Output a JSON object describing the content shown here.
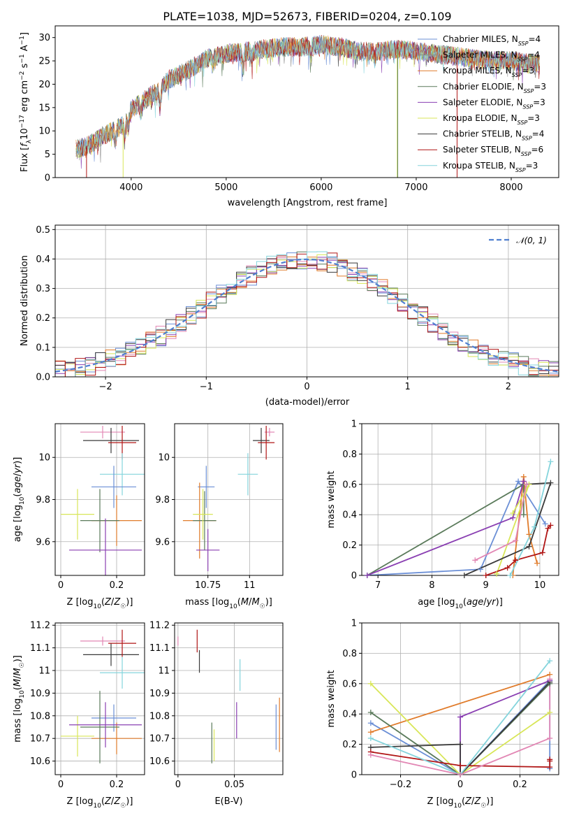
{
  "figure": {
    "colors": [
      "#6b8fd6",
      "#888888",
      "#e07b2a",
      "#5a7a5a",
      "#8a3fb2",
      "#d8e658",
      "#3a3a3a",
      "#b01515",
      "#84d4dc",
      "#e287b4"
    ]
  },
  "chart_data": [
    {
      "id": "spectrum",
      "type": "line",
      "title": "PLATE=1038, MJD=52673, FIBERID=0204, z=0.109",
      "xlabel": "wavelength [Angstrom, rest frame]",
      "ylabel": "Flux [f_λ 10^-17 erg cm^-2 s^-1 A^-1]",
      "xlim": [
        3200,
        8500
      ],
      "ylim": [
        0,
        32.5
      ],
      "xticks": [
        4000,
        5000,
        6000,
        7000,
        8000
      ],
      "yticks": [
        0,
        5,
        10,
        15,
        20,
        25,
        30
      ],
      "legend_position": "right",
      "series": [
        {
          "name": "Chabrier MILES, N_SSP=4",
          "color": "#6b8fd6"
        },
        {
          "name": "Salpeter MILES, N_SSP=4",
          "color": "#888888"
        },
        {
          "name": "Kroupa MILES, N_SSP=3",
          "color": "#e07b2a"
        },
        {
          "name": "Chabrier ELODIE, N_SSP=3",
          "color": "#5a7a5a"
        },
        {
          "name": "Salpeter ELODIE, N_SSP=3",
          "color": "#8a3fb2"
        },
        {
          "name": "Kroupa ELODIE, N_SSP=3",
          "color": "#d8e658"
        },
        {
          "name": "Chabrier STELIB, N_SSP=4",
          "color": "#3a3a3a"
        },
        {
          "name": "Salpeter STELIB, N_SSP=6",
          "color": "#b01515"
        },
        {
          "name": "Kroupa STELIB, N_SSP=3",
          "color": "#84d4dc"
        }
      ],
      "continuum": {
        "x": [
          3420,
          3500,
          3600,
          3700,
          3800,
          3900,
          4000,
          4100,
          4200,
          4300,
          4400,
          4600,
          4800,
          5000,
          5200,
          5400,
          5600,
          5800,
          6000,
          6200,
          6400,
          6600,
          6800,
          7000,
          7200,
          7400,
          7600,
          7800,
          8000,
          8200,
          8300
        ],
        "y": [
          6,
          6.5,
          7.5,
          9,
          10,
          11,
          14.5,
          16,
          17.5,
          19,
          21,
          23,
          25.5,
          26.5,
          27,
          27.5,
          28,
          28,
          28.5,
          28,
          27,
          27,
          27.5,
          27,
          26.5,
          26,
          25.5,
          25,
          25,
          24.5,
          24.5
        ]
      }
    },
    {
      "id": "residuals",
      "type": "step",
      "xlabel": "(data-model)/error",
      "ylabel": "Normed distribution",
      "xlim": [
        -2.5,
        2.5
      ],
      "ylim": [
        0,
        0.515
      ],
      "xticks": [
        -2,
        -1,
        0,
        1,
        2
      ],
      "yticks": [
        0.0,
        0.1,
        0.2,
        0.3,
        0.4,
        0.5
      ],
      "grid": true,
      "legend": {
        "label": "𝒩(0, 1)",
        "position": "top-right"
      }
    },
    {
      "id": "z-age",
      "type": "errorbar",
      "xlabel": "Z [log10(Z/Z☉)]",
      "ylabel": "age [log10(age/yr)]",
      "xlim": [
        -0.02,
        0.3
      ],
      "ylim": [
        9.44,
        10.16
      ],
      "xticks": [
        0.0,
        0.2
      ],
      "yticks": [
        9.6,
        9.8,
        10.0
      ],
      "grid": true,
      "points": [
        {
          "c": 9,
          "x": 0.15,
          "y": 10.12,
          "xe": 0.08,
          "ye": 0.03
        },
        {
          "c": 6,
          "x": 0.18,
          "y": 10.08,
          "xe": 0.1,
          "ye": 0.06
        },
        {
          "c": 7,
          "x": 0.22,
          "y": 10.07,
          "xe": 0.05,
          "ye": 0.08
        },
        {
          "c": 8,
          "x": 0.22,
          "y": 9.92,
          "xe": 0.08,
          "ye": 0.1
        },
        {
          "c": 0,
          "x": 0.19,
          "y": 9.86,
          "xe": 0.08,
          "ye": 0.1
        },
        {
          "c": 2,
          "x": 0.2,
          "y": 9.7,
          "xe": 0.09,
          "ye": 0.12
        },
        {
          "c": 3,
          "x": 0.14,
          "y": 9.7,
          "xe": 0.07,
          "ye": 0.15
        },
        {
          "c": 5,
          "x": 0.06,
          "y": 9.73,
          "xe": 0.06,
          "ye": 0.12
        },
        {
          "c": 4,
          "x": 0.16,
          "y": 9.56,
          "xe": 0.13,
          "ye": 0.15
        }
      ]
    },
    {
      "id": "mass-age",
      "type": "errorbar",
      "xlabel": "mass [log10(M/M☉)]",
      "ylabel": "",
      "xlim": [
        10.55,
        11.2
      ],
      "ylim": [
        9.44,
        10.16
      ],
      "xticks": [
        10.75,
        11.0
      ],
      "yticks": [
        9.6,
        9.8,
        10.0
      ],
      "grid": true,
      "points": [
        {
          "c": 9,
          "x": 11.12,
          "y": 10.12,
          "xe": 0.03,
          "ye": 0.02
        },
        {
          "c": 6,
          "x": 11.07,
          "y": 10.08,
          "xe": 0.05,
          "ye": 0.06
        },
        {
          "c": 7,
          "x": 11.1,
          "y": 10.07,
          "xe": 0.05,
          "ye": 0.08
        },
        {
          "c": 8,
          "x": 10.99,
          "y": 9.92,
          "xe": 0.06,
          "ye": 0.1
        },
        {
          "c": 0,
          "x": 10.74,
          "y": 9.86,
          "xe": 0.05,
          "ye": 0.1
        },
        {
          "c": 2,
          "x": 10.7,
          "y": 9.7,
          "xe": 0.1,
          "ye": 0.18
        },
        {
          "c": 3,
          "x": 10.73,
          "y": 9.7,
          "xe": 0.07,
          "ye": 0.14
        },
        {
          "c": 5,
          "x": 10.72,
          "y": 9.73,
          "xe": 0.06,
          "ye": 0.12
        },
        {
          "c": 4,
          "x": 10.75,
          "y": 9.56,
          "xe": 0.07,
          "ye": 0.1
        }
      ]
    },
    {
      "id": "age-weight",
      "type": "line",
      "xlabel": "age [log10(age/yr)]",
      "ylabel": "mass weight",
      "xlim": [
        6.7,
        10.35
      ],
      "ylim": [
        0,
        1.0
      ],
      "xticks": [
        7,
        8,
        9,
        10
      ],
      "yticks": [
        0.0,
        0.2,
        0.4,
        0.6,
        0.8,
        1.0
      ],
      "grid": true,
      "series": [
        {
          "c": 0,
          "x": [
            6.8,
            8.9,
            9.6,
            10.1
          ],
          "y": [
            0.0,
            0.04,
            0.62,
            0.34
          ]
        },
        {
          "c": 2,
          "x": [
            9.5,
            9.7,
            9.8,
            9.95
          ],
          "y": [
            0.0,
            0.65,
            0.27,
            0.08
          ]
        },
        {
          "c": 3,
          "x": [
            6.8,
            9.7,
            9.7
          ],
          "y": [
            0.0,
            0.6,
            0.4
          ]
        },
        {
          "c": 4,
          "x": [
            6.8,
            9.5,
            9.7
          ],
          "y": [
            0.0,
            0.38,
            0.62
          ]
        },
        {
          "c": 5,
          "x": [
            9.2,
            9.8,
            9.5
          ],
          "y": [
            0.01,
            0.6,
            0.41
          ]
        },
        {
          "c": 6,
          "x": [
            8.6,
            9.8,
            10.2,
            9.75
          ],
          "y": [
            0.0,
            0.19,
            0.61,
            0.6
          ]
        },
        {
          "c": 7,
          "x": [
            9.0,
            9.4,
            9.55,
            10.05,
            10.15,
            10.2
          ],
          "y": [
            0.0,
            0.05,
            0.1,
            0.15,
            0.31,
            0.33
          ]
        },
        {
          "c": 8,
          "x": [
            9.45,
            9.9,
            10.2
          ],
          "y": [
            0.0,
            0.32,
            0.75
          ]
        },
        {
          "c": 9,
          "x": [
            8.8,
            9.55,
            9.75
          ],
          "y": [
            0.1,
            0.23,
            0.6
          ]
        }
      ]
    },
    {
      "id": "z-mass",
      "type": "errorbar",
      "xlabel": "Z [log10(Z/Z☉)]",
      "ylabel": "mass [log10(M/M☉)]",
      "xlim": [
        -0.02,
        0.3
      ],
      "ylim": [
        10.54,
        11.21
      ],
      "xticks": [
        0.0,
        0.2
      ],
      "yticks": [
        10.6,
        10.7,
        10.8,
        10.9,
        11.0,
        11.1,
        11.2
      ],
      "grid": true,
      "points": [
        {
          "c": 9,
          "x": 0.15,
          "y": 11.13,
          "xe": 0.08,
          "ye": 0.02
        },
        {
          "c": 6,
          "x": 0.18,
          "y": 11.07,
          "xe": 0.1,
          "ye": 0.05
        },
        {
          "c": 7,
          "x": 0.22,
          "y": 11.12,
          "xe": 0.05,
          "ye": 0.06
        },
        {
          "c": 8,
          "x": 0.22,
          "y": 10.99,
          "xe": 0.08,
          "ye": 0.07
        },
        {
          "c": 0,
          "x": 0.19,
          "y": 10.79,
          "xe": 0.08,
          "ye": 0.06
        },
        {
          "c": 2,
          "x": 0.2,
          "y": 10.7,
          "xe": 0.09,
          "ye": 0.07
        },
        {
          "c": 3,
          "x": 0.14,
          "y": 10.75,
          "xe": 0.07,
          "ye": 0.16
        },
        {
          "c": 5,
          "x": 0.06,
          "y": 10.71,
          "xe": 0.06,
          "ye": 0.09
        },
        {
          "c": 4,
          "x": 0.16,
          "y": 10.76,
          "xe": 0.13,
          "ye": 0.1
        }
      ]
    },
    {
      "id": "ebv-mass",
      "type": "errorbar",
      "xlabel": "E(B-V)",
      "ylabel": "",
      "xlim": [
        -0.003,
        0.093
      ],
      "ylim": [
        10.54,
        11.21
      ],
      "xticks": [
        0.0,
        0.05
      ],
      "yticks": [
        10.6,
        10.7,
        10.8,
        10.9,
        11.0,
        11.1,
        11.2
      ],
      "grid": true,
      "points": [
        {
          "c": 9,
          "x": 0.0,
          "y": 11.13,
          "xe": 0,
          "ye": 0.02
        },
        {
          "c": 7,
          "x": 0.017,
          "y": 11.13,
          "xe": 0,
          "ye": 0.05
        },
        {
          "c": 6,
          "x": 0.019,
          "y": 11.04,
          "xe": 0,
          "ye": 0.05
        },
        {
          "c": 8,
          "x": 0.055,
          "y": 10.98,
          "xe": 0,
          "ye": 0.07
        },
        {
          "c": 4,
          "x": 0.052,
          "y": 10.78,
          "xe": 0,
          "ye": 0.08
        },
        {
          "c": 3,
          "x": 0.03,
          "y": 10.68,
          "xe": 0,
          "ye": 0.09
        },
        {
          "c": 5,
          "x": 0.032,
          "y": 10.67,
          "xe": 0,
          "ye": 0.07
        },
        {
          "c": 0,
          "x": 0.087,
          "y": 10.75,
          "xe": 0,
          "ye": 0.1
        },
        {
          "c": 2,
          "x": 0.09,
          "y": 10.76,
          "xe": 0,
          "ye": 0.12
        }
      ]
    },
    {
      "id": "z-weight",
      "type": "line",
      "xlabel": "Z [log10(Z/Z☉)]",
      "ylabel": "mass weight",
      "xlim": [
        -0.33,
        0.33
      ],
      "ylim": [
        0,
        1.0
      ],
      "xticks": [
        -0.2,
        0.0,
        0.2
      ],
      "yticks": [
        0.0,
        0.2,
        0.4,
        0.6,
        0.8,
        1.0
      ],
      "grid": true,
      "series": [
        {
          "c": 0,
          "x": [
            -0.3,
            0.0,
            0.3,
            0.3
          ],
          "y": [
            0.34,
            0.0,
            0.62,
            0.04
          ]
        },
        {
          "c": 2,
          "x": [
            -0.3,
            0.3
          ],
          "y": [
            0.28,
            0.66
          ]
        },
        {
          "c": 3,
          "x": [
            -0.3,
            0.0,
            0.3
          ],
          "y": [
            0.41,
            0.0,
            0.6
          ]
        },
        {
          "c": 4,
          "x": [
            0.0,
            0.0,
            0.3
          ],
          "y": [
            0.0,
            0.38,
            0.62
          ]
        },
        {
          "c": 5,
          "x": [
            -0.3,
            0.0,
            0.3
          ],
          "y": [
            0.6,
            0.0,
            0.41
          ]
        },
        {
          "c": 6,
          "x": [
            -0.3,
            0.0,
            0.0,
            0.3
          ],
          "y": [
            0.18,
            0.2,
            0.0,
            0.61
          ]
        },
        {
          "c": 7,
          "x": [
            -0.3,
            0.0,
            0.3,
            0.3,
            0.3
          ],
          "y": [
            0.15,
            0.06,
            0.05,
            0.09,
            0.1
          ]
        },
        {
          "c": 8,
          "x": [
            -0.3,
            0.0,
            0.3
          ],
          "y": [
            0.24,
            0.0,
            0.75
          ]
        },
        {
          "c": 9,
          "x": [
            -0.3,
            0.0,
            0.3,
            0.3
          ],
          "y": [
            0.13,
            0.0,
            0.24,
            0.63
          ]
        }
      ]
    }
  ]
}
